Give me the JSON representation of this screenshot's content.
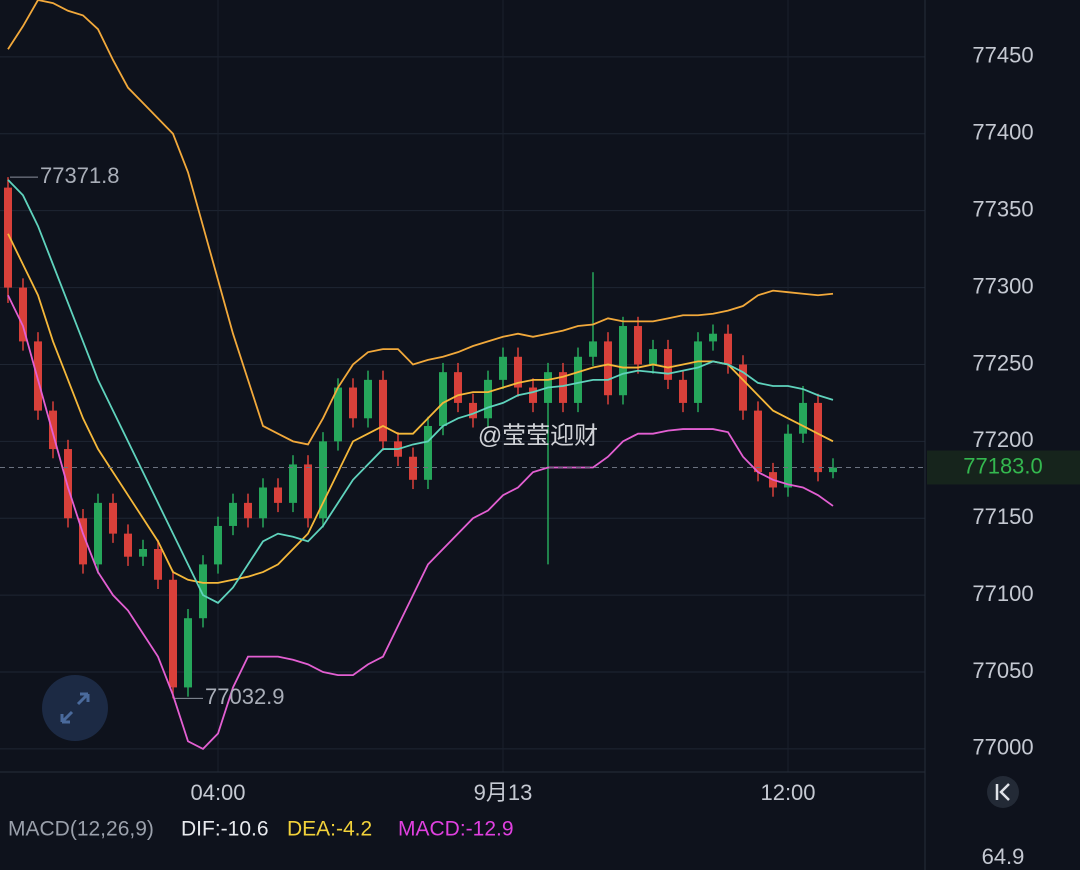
{
  "chart_data": {
    "type": "candlestick",
    "watermark": "@莹莹迎财",
    "categories": [
      null,
      null,
      null,
      null,
      null,
      null,
      null,
      null,
      null,
      null,
      null,
      null,
      null,
      null,
      "04:00",
      null,
      null,
      null,
      null,
      null,
      null,
      null,
      null,
      null,
      null,
      null,
      null,
      null,
      null,
      null,
      null,
      null,
      null,
      "9月13",
      null,
      null,
      null,
      null,
      null,
      null,
      null,
      null,
      null,
      null,
      null,
      null,
      null,
      null,
      null,
      null,
      null,
      null,
      "12:00",
      null,
      null,
      null
    ],
    "open": [
      77365,
      77300,
      77265,
      77220,
      77195,
      77150,
      77120,
      77160,
      77140,
      77125,
      77130,
      77110,
      77040,
      77085,
      77120,
      77145,
      77160,
      77150,
      77170,
      77160,
      77185,
      77150,
      77200,
      77235,
      77215,
      77240,
      77200,
      77190,
      77175,
      77210,
      77245,
      77225,
      77215,
      77240,
      77255,
      77235,
      77225,
      77245,
      77225,
      77255,
      77265,
      77230,
      77275,
      77250,
      77260,
      77240,
      77225,
      77265,
      77270,
      77250,
      77220,
      77180,
      77170,
      77205,
      77225,
      77180
    ],
    "high": [
      77371.8,
      77306,
      77271,
      77226,
      77201,
      77156,
      77166,
      77166,
      77146,
      77136,
      77136,
      77116,
      77091,
      77126,
      77151,
      77166,
      77166,
      77176,
      77176,
      77191,
      77191,
      77206,
      77241,
      77241,
      77246,
      77246,
      77206,
      77196,
      77216,
      77251,
      77251,
      77231,
      77246,
      77261,
      77261,
      77241,
      77251,
      77251,
      77261,
      77310,
      77271,
      77281,
      77281,
      77266,
      77266,
      77246,
      77271,
      77276,
      77276,
      77256,
      77226,
      77186,
      77211,
      77236,
      77231,
      77189
    ],
    "low": [
      77290,
      77259,
      77214,
      77189,
      77144,
      77114,
      77114,
      77134,
      77119,
      77119,
      77104,
      77032.9,
      77034,
      77079,
      77114,
      77139,
      77144,
      77144,
      77154,
      77154,
      77144,
      77144,
      77194,
      77209,
      77209,
      77194,
      77184,
      77169,
      77169,
      77204,
      77219,
      77209,
      77209,
      77234,
      77229,
      77219,
      77120,
      77219,
      77219,
      77249,
      77224,
      77224,
      77244,
      77244,
      77234,
      77219,
      77219,
      77259,
      77244,
      77214,
      77174,
      77164,
      77164,
      77199,
      77174,
      77176
    ],
    "close": [
      77300,
      77265,
      77220,
      77195,
      77150,
      77120,
      77160,
      77140,
      77125,
      77130,
      77110,
      77040,
      77085,
      77120,
      77145,
      77160,
      77150,
      77170,
      77160,
      77185,
      77150,
      77200,
      77235,
      77215,
      77240,
      77200,
      77190,
      77175,
      77210,
      77245,
      77225,
      77215,
      77240,
      77255,
      77235,
      77225,
      77245,
      77225,
      77255,
      77265,
      77230,
      77275,
      77250,
      77260,
      77240,
      77225,
      77265,
      77270,
      77250,
      77220,
      77180,
      77170,
      77205,
      77225,
      77180,
      77183
    ],
    "up_color": "#26a65b",
    "down_color": "#d8403a",
    "series": [
      {
        "color": "#f2a93b",
        "values": [
          77455,
          77470,
          77487,
          77485,
          77480,
          77477,
          77468,
          77448,
          77430,
          77420,
          77410,
          77400,
          77375,
          77340,
          77305,
          77270,
          77240,
          77210,
          77205,
          77200,
          77198,
          77215,
          77235,
          77250,
          77258,
          77260,
          77260,
          77250,
          77253,
          77255,
          77258,
          77262,
          77265,
          77268,
          77270,
          77268,
          77270,
          77272,
          77275,
          77276,
          77280,
          77278,
          77278,
          77278,
          77280,
          77282,
          77282,
          77283,
          77285,
          77288,
          77295,
          77298,
          77297,
          77296,
          77295,
          77296
        ]
      },
      {
        "color": "#f5b83a",
        "values": [
          77335,
          77315,
          77295,
          77265,
          77240,
          77215,
          77195,
          77180,
          77165,
          77150,
          77135,
          77115,
          77110,
          77108,
          77108,
          77110,
          77112,
          77115,
          77120,
          77130,
          77140,
          77160,
          77180,
          77200,
          77205,
          77210,
          77205,
          77205,
          77215,
          77225,
          77230,
          77232,
          77232,
          77235,
          77238,
          77240,
          77240,
          77242,
          77245,
          77248,
          77250,
          77248,
          77248,
          77250,
          77248,
          77250,
          77252,
          77252,
          77250,
          77240,
          77230,
          77220,
          77215,
          77210,
          77205,
          77200
        ]
      },
      {
        "color": "#5fd3bd",
        "values": [
          77370,
          77360,
          77340,
          77315,
          77290,
          77265,
          77240,
          77220,
          77200,
          77180,
          77160,
          77140,
          77120,
          77100,
          77095,
          77105,
          77120,
          77135,
          77140,
          77138,
          77135,
          77145,
          77160,
          77175,
          77185,
          77195,
          77195,
          77198,
          77200,
          77210,
          77215,
          77218,
          77222,
          77225,
          77230,
          77232,
          77235,
          77236,
          77238,
          77240,
          77240,
          77244,
          77246,
          77245,
          77244,
          77246,
          77248,
          77252,
          77250,
          77245,
          77238,
          77236,
          77236,
          77234,
          77230,
          77227
        ]
      },
      {
        "color": "#e35fd2",
        "values": [
          77295,
          77275,
          77240,
          77205,
          77170,
          77140,
          77115,
          77100,
          77090,
          77075,
          77060,
          77035,
          77005,
          77000,
          77010,
          77040,
          77060,
          77060,
          77060,
          77058,
          77055,
          77050,
          77048,
          77048,
          77055,
          77060,
          77080,
          77100,
          77120,
          77130,
          77140,
          77150,
          77155,
          77165,
          77170,
          77180,
          77183,
          77183,
          77183,
          77183,
          77190,
          77200,
          77205,
          77205,
          77207,
          77208,
          77208,
          77208,
          77206,
          77190,
          77180,
          77175,
          77172,
          77170,
          77165,
          77158
        ]
      }
    ],
    "annotations": [
      {
        "value": 77371.8,
        "label": "77371.8"
      },
      {
        "value": 77032.9,
        "label": "77032.9"
      }
    ],
    "last_price": {
      "value": 77183,
      "label": "77183.0"
    },
    "ylim": [
      76985,
      77487
    ],
    "yticks": [
      77000,
      77050,
      77100,
      77150,
      77200,
      77250,
      77300,
      77350,
      77400,
      77450
    ],
    "grid": true,
    "macd_legend": {
      "name": "MACD(12,26,9)",
      "dif": "DIF:-10.6",
      "dea": "DEA:-4.2",
      "macd": "MACD:-12.9"
    },
    "macd_axis_label": "64.9"
  }
}
